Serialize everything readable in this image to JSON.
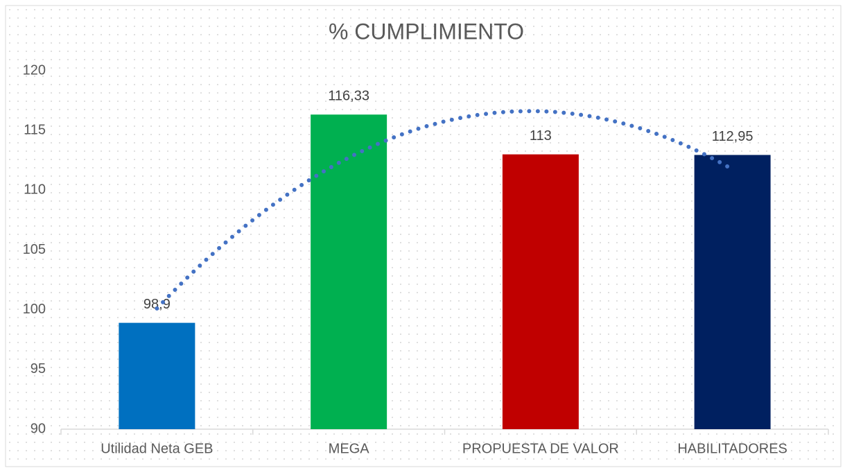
{
  "chart_data": {
    "type": "bar",
    "title": "% CUMPLIMIENTO",
    "categories": [
      "Utilidad Neta GEB",
      "MEGA",
      "PROPUESTA DE VALOR",
      "HABILITADORES"
    ],
    "values": [
      98.9,
      116.33,
      113,
      112.95
    ],
    "value_labels": [
      "98,9",
      "116,33",
      "113",
      "112,95"
    ],
    "colors": [
      "#0070c0",
      "#00b050",
      "#c00000",
      "#002060"
    ],
    "ylim": [
      90,
      120
    ],
    "yticks": [
      90,
      95,
      100,
      105,
      110,
      115,
      120
    ],
    "grid": false,
    "trendline": {
      "type": "polynomial",
      "order": 2,
      "color": "#4472c4"
    }
  }
}
